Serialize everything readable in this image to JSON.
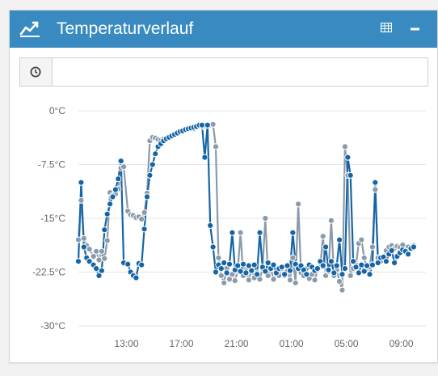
{
  "panel": {
    "title": "Temperaturverlauf",
    "header_color": "#3a8ac2",
    "icons": {
      "title": "line-chart-icon",
      "table": "table-icon",
      "collapse": "minus-icon",
      "clock": "clock-icon"
    }
  },
  "time_input": {
    "value": "",
    "placeholder": ""
  },
  "chart_data": {
    "type": "line",
    "title": "",
    "xlabel": "",
    "ylabel": "",
    "ylim": [
      -30,
      0
    ],
    "yticks": [
      "0°C",
      "-7.5°C",
      "-15°C",
      "-22.5°C",
      "-30°C"
    ],
    "ytick_values": [
      0,
      -7.5,
      -15,
      -22.5,
      -30
    ],
    "xticks": [
      "13:00",
      "17:00",
      "21:00",
      "01:00",
      "05:00",
      "09:00"
    ],
    "xtick_hours": [
      13,
      17,
      21,
      25,
      29,
      33
    ],
    "grid": true,
    "legend": "none",
    "x_unit": "hours (tick labels are time of day)",
    "series": [
      {
        "color": "#8a9aaa",
        "x": [
          9.5,
          9.7,
          9.9,
          10.1,
          10.3,
          10.6,
          10.8,
          11.0,
          11.2,
          11.4,
          11.6,
          11.8,
          12.0,
          12.2,
          12.4,
          12.6,
          12.8,
          13.1,
          13.3,
          13.5,
          13.7,
          13.9,
          14.1,
          14.3,
          14.5,
          14.7,
          14.9,
          15.1,
          15.3,
          15.5,
          15.7,
          15.9,
          16.1,
          16.3,
          16.5,
          16.7,
          16.9,
          17.1,
          17.3,
          17.5,
          17.7,
          17.9,
          18.1,
          18.3,
          18.5,
          18.7,
          18.9,
          19.1,
          19.3,
          19.5,
          19.7,
          19.9,
          20.1,
          20.3,
          20.5,
          20.7,
          20.9,
          21.1,
          21.3,
          21.5,
          21.7,
          21.9,
          22.1,
          22.3,
          22.5,
          22.7,
          22.9,
          23.1,
          23.3,
          23.5,
          23.7,
          23.9,
          24.1,
          24.3,
          24.5,
          24.7,
          24.9,
          25.1,
          25.3,
          25.5,
          25.7,
          25.9,
          26.1,
          26.3,
          26.5,
          26.7,
          26.9,
          27.1,
          27.3,
          27.5,
          27.7,
          27.9,
          28.1,
          28.3,
          28.5,
          28.7,
          28.9,
          29.1,
          29.3,
          29.5,
          29.7,
          29.9,
          30.1,
          30.3,
          30.5,
          30.7,
          30.9,
          31.1,
          31.3,
          31.5,
          31.7,
          31.9,
          32.1,
          32.3,
          32.5,
          32.7,
          32.9,
          33.1,
          33.3,
          33.5,
          33.7,
          33.9
        ],
        "y": [
          -18,
          -12.5,
          -17.8,
          -18.8,
          -19.3,
          -20.3,
          -19.6,
          -20.8,
          -19.6,
          -20.6,
          -18.1,
          -11.4,
          -11.8,
          -11.6,
          -10.9,
          -8.0,
          -7.8,
          -14.0,
          -14.5,
          -14.6,
          -14.9,
          -14.8,
          -15.1,
          -14.2,
          -11.5,
          -4.2,
          -3.7,
          -3.8,
          -4.0,
          -4.1,
          -3.9,
          -3.8,
          -3.6,
          -3.5,
          -3.3,
          -3.2,
          -3.0,
          -2.9,
          -2.7,
          -2.6,
          -2.5,
          -2.5,
          -2.3,
          -2.2,
          -2.2,
          -2.1,
          -2.0,
          -2.0,
          -1.9,
          -5.0,
          -20.5,
          -23.0,
          -24.0,
          -22.0,
          -23.5,
          -22.8,
          -23.7,
          -22.3,
          -17.0,
          -23.0,
          -22.3,
          -23.6,
          -22.0,
          -23.3,
          -22.6,
          -23.5,
          -22.0,
          -15.0,
          -23.0,
          -22.0,
          -23.5,
          -22.6,
          -23.0,
          -22.0,
          -23.0,
          -22.4,
          -23.6,
          -20.5,
          -24.0,
          -13.0,
          -22.6,
          -23.0,
          -22.0,
          -23.4,
          -22.8,
          -23.6,
          -22.2,
          -21.8,
          -17.5,
          -23.0,
          -22.4,
          -15.3,
          -23.0,
          -22.2,
          -23.8,
          -25.0,
          -5.0,
          -9.0,
          -23.0,
          -22.0,
          -21.5,
          -18.5,
          -18.0,
          -20.5,
          -22.0,
          -21.8,
          -19.0,
          -11.0,
          -20.5,
          -21.0,
          -20.5,
          -19.5,
          -19.0,
          -18.8,
          -19.2,
          -18.9,
          -19.0,
          -18.7,
          -19.5,
          -19.0,
          -19.2,
          -18.8
        ],
        "x_note": "grey series"
      },
      {
        "color": "#1565a6",
        "x": [
          9.5,
          9.7,
          9.9,
          10.1,
          10.3,
          10.6,
          10.8,
          11.0,
          11.2,
          11.4,
          11.6,
          11.8,
          12.0,
          12.2,
          12.4,
          12.6,
          12.8,
          13.1,
          13.3,
          13.5,
          13.7,
          13.9,
          14.1,
          14.3,
          14.5,
          14.7,
          14.9,
          15.1,
          15.3,
          15.5,
          15.7,
          15.9,
          16.1,
          16.3,
          16.5,
          16.7,
          16.9,
          17.1,
          17.3,
          17.5,
          17.7,
          17.9,
          18.1,
          18.3,
          18.5,
          18.7,
          18.9,
          19.1,
          19.3,
          19.5,
          19.7,
          19.9,
          20.1,
          20.3,
          20.5,
          20.7,
          20.9,
          21.1,
          21.3,
          21.5,
          21.7,
          21.9,
          22.1,
          22.3,
          22.5,
          22.7,
          22.9,
          23.1,
          23.3,
          23.5,
          23.7,
          23.9,
          24.1,
          24.3,
          24.5,
          24.7,
          24.9,
          25.1,
          25.3,
          25.5,
          25.7,
          25.9,
          26.1,
          26.3,
          26.5,
          26.7,
          26.9,
          27.1,
          27.3,
          27.5,
          27.7,
          27.9,
          28.1,
          28.3,
          28.5,
          28.7,
          28.9,
          29.1,
          29.3,
          29.5,
          29.7,
          29.9,
          30.1,
          30.3,
          30.5,
          30.7,
          30.9,
          31.1,
          31.3,
          31.5,
          31.7,
          31.9,
          32.1,
          32.3,
          32.5,
          32.7,
          32.9,
          33.1,
          33.3,
          33.5,
          33.7,
          33.9
        ],
        "y": [
          -21,
          -10,
          -19,
          -20.5,
          -21.0,
          -21.5,
          -22.0,
          -23.0,
          -22.3,
          -16.6,
          -14.4,
          -13.0,
          -12.0,
          -11.0,
          -9.5,
          -7.0,
          -21.2,
          -21.4,
          -22.5,
          -23.0,
          -23.3,
          -21.3,
          -21.5,
          -16.5,
          -12.0,
          -9.0,
          -7.5,
          -6.0,
          -5.0,
          -4.6,
          -4.2,
          -3.9,
          -3.7,
          -3.5,
          -3.3,
          -3.1,
          -2.9,
          -2.8,
          -2.6,
          -2.5,
          -2.4,
          -2.3,
          -2.2,
          -2.0,
          -2.0,
          -6.5,
          -2.0,
          -16.0,
          -19.0,
          -22.5,
          -21.5,
          -22.0,
          -21.2,
          -22.6,
          -21.4,
          -17.0,
          -22.2,
          -21.6,
          -22.4,
          -21.4,
          -22.6,
          -21.6,
          -22.3,
          -21.5,
          -22.8,
          -17.0,
          -21.8,
          -22.4,
          -21.2,
          -22.0,
          -21.5,
          -22.6,
          -22.0,
          -21.8,
          -22.8,
          -21.6,
          -22.3,
          -17.0,
          -21.4,
          -22.0,
          -21.6,
          -22.2,
          -22.8,
          -21.5,
          -21.8,
          -22.3,
          -22.0,
          -21.0,
          -21.6,
          -19.0,
          -22.2,
          -21.0,
          -22.6,
          -21.6,
          -18.0,
          -22.8,
          -22.0,
          -6.5,
          -9.0,
          -21.0,
          -21.8,
          -22.6,
          -21.5,
          -22.4,
          -21.6,
          -22.8,
          -21.5,
          -10.0,
          -21.2,
          -20.5,
          -20.4,
          -21.0,
          -20.0,
          -19.5,
          -21.2,
          -20.3,
          -19.8,
          -19.4,
          -19.6,
          -20.0,
          -19.2,
          -19.0
        ],
        "x_note": "blue series"
      }
    ]
  }
}
